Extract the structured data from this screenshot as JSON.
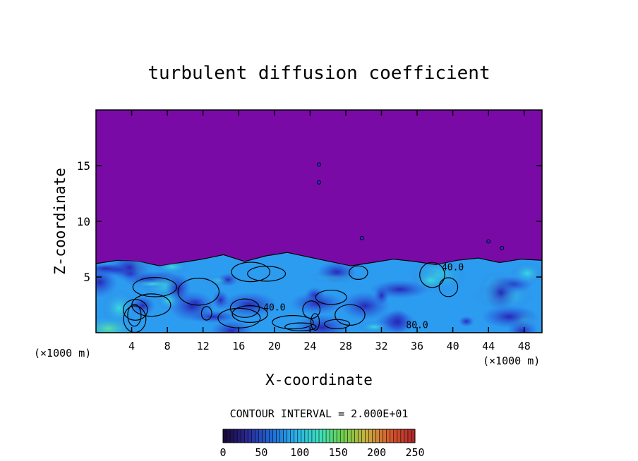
{
  "chart_data": {
    "type": "heatmap",
    "title": "turbulent diffusion coefficient",
    "xlabel": "X-coordinate",
    "ylabel": "Z-coordinate",
    "x_unit_left": "(×1000 m)",
    "x_unit_right": "(×1000 m)",
    "xlim": [
      0,
      50
    ],
    "ylim": [
      0,
      20
    ],
    "x_ticks": [
      "4",
      "8",
      "12",
      "16",
      "20",
      "24",
      "28",
      "32",
      "36",
      "40",
      "44",
      "48"
    ],
    "x_tick_values": [
      4,
      8,
      12,
      16,
      20,
      24,
      28,
      32,
      36,
      40,
      44,
      48
    ],
    "y_ticks": [
      "5",
      "10",
      "15"
    ],
    "y_tick_values": [
      5,
      10,
      15
    ],
    "contour_interval_text": "CONTOUR INTERVAL = 2.000E+01",
    "contour_labels": [
      {
        "text": "40.0",
        "x": 20,
        "z": 2.0
      },
      {
        "text": "80.0",
        "x": 36,
        "z": 0.4
      },
      {
        "text": "40.0",
        "x": 40,
        "z": 5.6
      }
    ],
    "boundary_layer_top_z": [
      6.2,
      6.5,
      6.4,
      6.0,
      6.3,
      6.6,
      7.0,
      6.4,
      6.9,
      7.2,
      6.8,
      6.4,
      6.0,
      6.3,
      6.6,
      6.4,
      6.1,
      6.5,
      6.7,
      6.3,
      6.6,
      6.5
    ],
    "colorbar": {
      "min": 0,
      "max": 250,
      "ticks": [
        "0",
        "50",
        "100",
        "150",
        "200",
        "250"
      ],
      "tick_values": [
        0,
        50,
        100,
        150,
        200,
        250
      ],
      "colors": [
        "#1a0a3a",
        "#2a2a9a",
        "#1f6ad8",
        "#2ab0e8",
        "#3ce0c0",
        "#6cd24a",
        "#c8b040",
        "#d85a2c",
        "#b02a2a"
      ]
    },
    "colors": {
      "background": "#7a0aa6",
      "turbulence_low": "#2a2ad8",
      "turbulence_mid": "#2c9cf0",
      "turbulence_high": "#3ad8c8"
    }
  }
}
